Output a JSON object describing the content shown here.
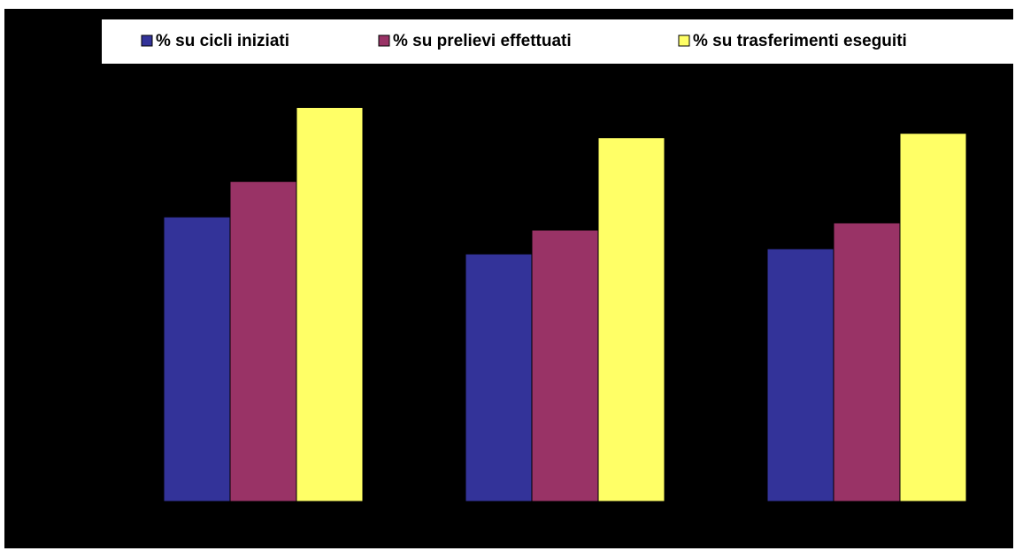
{
  "chart_data": {
    "type": "bar",
    "title": "",
    "xlabel": "",
    "ylabel": "",
    "ylim": [
      0,
      100
    ],
    "grid": false,
    "legend_position": "top",
    "categories": [
      "",
      "",
      ""
    ],
    "series": [
      {
        "name": "% su cicli iniziati",
        "color": "#333399",
        "values": [
          71.5,
          62.2,
          63.5
        ]
      },
      {
        "name": "% su prelievi effettuati",
        "color": "#993366",
        "values": [
          80.4,
          68.2,
          70.0
        ]
      },
      {
        "name": "% su trasferimenti eseguiti",
        "color": "#ffff66",
        "values": [
          99.0,
          91.4,
          92.5
        ]
      }
    ]
  },
  "colors": {
    "plot_background": "#000000",
    "legend_background": "#ffffff",
    "bar_outline": "#000000"
  }
}
